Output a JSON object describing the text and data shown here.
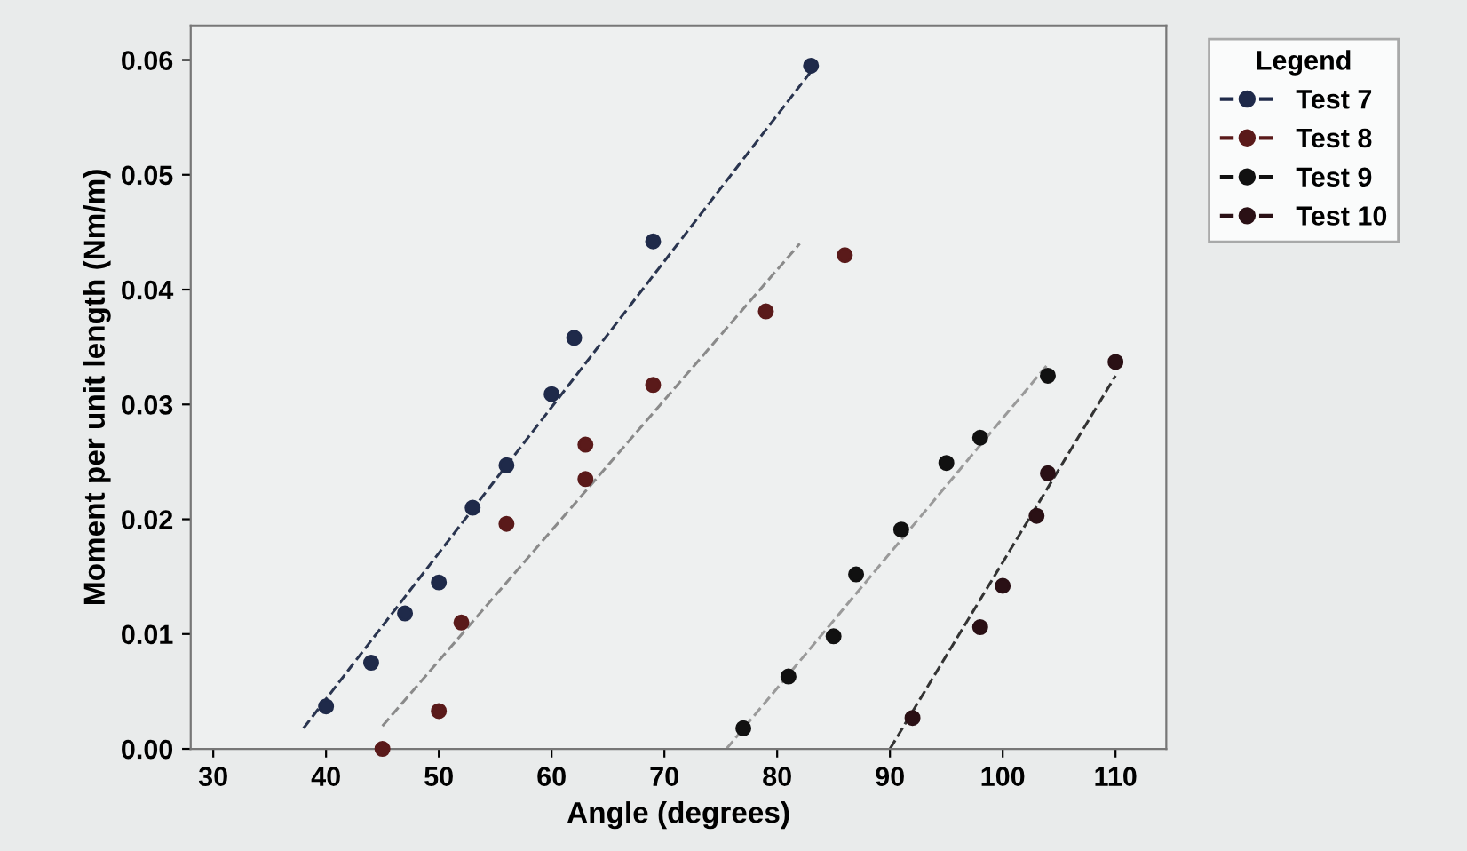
{
  "chart_data": {
    "type": "scatter",
    "xlabel": "Angle (degrees)",
    "ylabel": "Moment per unit length (Nm/m)",
    "legend_title": "Legend",
    "legend": "top right",
    "grid": false,
    "marker": "circle",
    "xlim": [
      28,
      114.5
    ],
    "ylim": [
      0,
      0.063
    ],
    "xticks": [
      30,
      40,
      50,
      60,
      70,
      80,
      90,
      100,
      110
    ],
    "yticks": [
      {
        "value": 0,
        "label": "0.00"
      },
      {
        "value": 0.01,
        "label": "0.01"
      },
      {
        "value": 0.02,
        "label": "0.02"
      },
      {
        "value": 0.03,
        "label": "0.03"
      },
      {
        "value": 0.04,
        "label": "0.04"
      },
      {
        "value": 0.05,
        "label": "0.05"
      },
      {
        "value": 0.06,
        "label": "0.06"
      }
    ],
    "series": [
      {
        "name": "Test 7",
        "color": "#1f2a4a",
        "x": [
          40,
          44,
          47,
          50,
          53,
          56,
          60,
          62,
          69,
          83
        ],
        "values": [
          0.0037,
          0.0075,
          0.0118,
          0.0145,
          0.021,
          0.0247,
          0.0309,
          0.0358,
          0.0442,
          0.0595
        ]
      },
      {
        "name": "Test 8",
        "color": "#5a1a1a",
        "x": [
          45,
          50,
          52,
          56,
          63,
          63,
          69,
          79,
          86
        ],
        "values": [
          0.0,
          0.0033,
          0.011,
          0.0196,
          0.0265,
          0.0235,
          0.0317,
          0.0381,
          0.043
        ]
      },
      {
        "name": "Test 9",
        "color": "#111111",
        "x": [
          77,
          81,
          85,
          87,
          91,
          95,
          98,
          104
        ],
        "values": [
          0.0018,
          0.0063,
          0.0098,
          0.0152,
          0.0191,
          0.0249,
          0.0271,
          0.0325
        ]
      },
      {
        "name": "Test 10",
        "color": "#2a1015",
        "x": [
          92,
          98,
          100,
          103,
          104,
          110
        ],
        "values": [
          0.0027,
          0.0106,
          0.0142,
          0.0203,
          0.024,
          0.0337
        ]
      },
      {
        "type": "line",
        "line_style": "dashed",
        "marker": "none",
        "color": "#2a3550",
        "x": [
          38,
          83
        ],
        "values": [
          0.0018,
          0.059
        ]
      },
      {
        "type": "line",
        "line_style": "dashed",
        "marker": "none",
        "color": "#8a8a8a",
        "x": [
          45,
          82
        ],
        "values": [
          0.002,
          0.044
        ]
      },
      {
        "type": "line",
        "line_style": "dashed",
        "marker": "none",
        "color": "#9a9a9a",
        "x": [
          75.5,
          104
        ],
        "values": [
          0.0,
          0.0335
        ]
      },
      {
        "type": "line",
        "line_style": "dashed",
        "marker": "none",
        "color": "#333333",
        "x": [
          90,
          110
        ],
        "values": [
          0.0,
          0.0325
        ]
      }
    ]
  }
}
